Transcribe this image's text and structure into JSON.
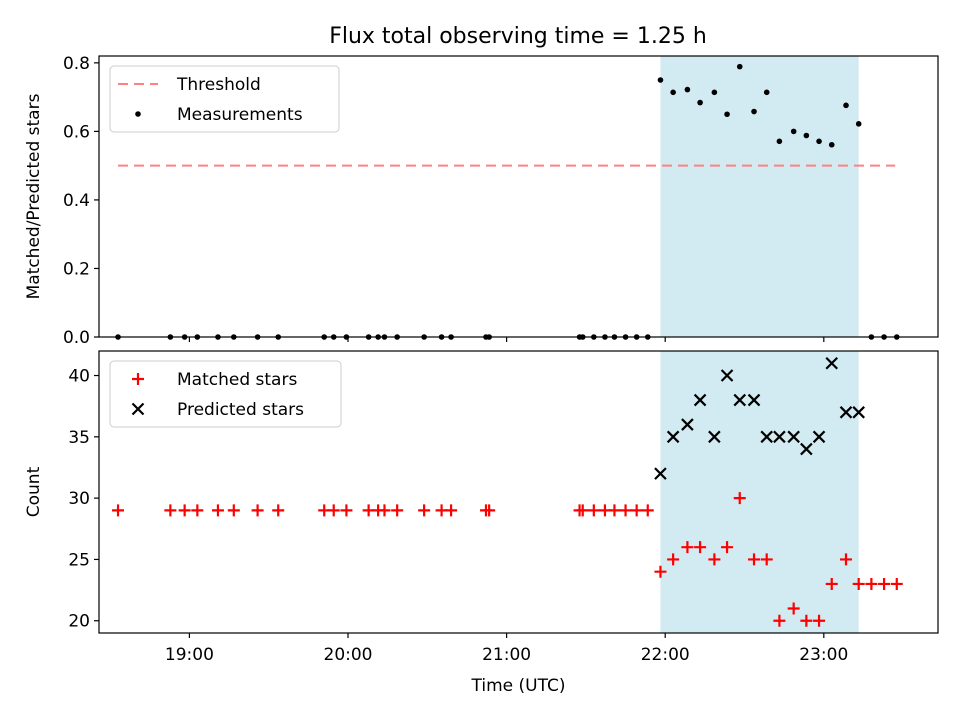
{
  "figure": {
    "title": "Flux total observing time = 1.25 h"
  },
  "chart_data": [
    {
      "type": "scatter",
      "panel": "top",
      "title": "Flux total observing time = 1.25 h",
      "xlabel": "",
      "ylabel": "Matched/Predicted stars",
      "x_units": "hours (UTC, decimal)",
      "xlim": [
        18.43,
        23.72
      ],
      "ylim": [
        0,
        0.82
      ],
      "yticks": [
        0.0,
        0.2,
        0.4,
        0.6,
        0.8
      ],
      "ytick_labels": [
        "0.0",
        "0.2",
        "0.4",
        "0.6",
        "0.8"
      ],
      "xticks": [
        19,
        20,
        21,
        22,
        23
      ],
      "xtick_labels": [
        "",
        "",
        "",
        "",
        ""
      ],
      "highlight_span": {
        "x": [
          21.97,
          23.22
        ],
        "color": "#add8e6"
      },
      "threshold": {
        "name": "Threshold",
        "y": 0.5,
        "x": [
          18.55,
          23.45
        ],
        "color": "#ff8080",
        "style": "dashed"
      },
      "series": [
        {
          "name": "Measurements",
          "marker": "dot",
          "color": "#000000",
          "x": [
            18.55,
            18.88,
            18.97,
            19.05,
            19.18,
            19.28,
            19.43,
            19.56,
            19.85,
            19.91,
            19.99,
            20.13,
            20.19,
            20.23,
            20.31,
            20.48,
            20.59,
            20.65,
            20.87,
            20.89,
            21.46,
            21.48,
            21.55,
            21.62,
            21.68,
            21.75,
            21.82,
            21.89,
            21.97,
            22.05,
            22.14,
            22.22,
            22.31,
            22.39,
            22.47,
            22.56,
            22.64,
            22.72,
            22.81,
            22.89,
            22.97,
            23.05,
            23.14,
            23.22,
            23.3,
            23.38,
            23.46
          ],
          "y": [
            0,
            0,
            0,
            0,
            0,
            0,
            0,
            0,
            0,
            0,
            0,
            0,
            0,
            0,
            0,
            0,
            0,
            0,
            0,
            0,
            0,
            0,
            0,
            0,
            0,
            0,
            0,
            0,
            0.75,
            0.714,
            0.722,
            0.684,
            0.714,
            0.65,
            0.789,
            0.658,
            0.714,
            0.571,
            0.6,
            0.588,
            0.571,
            0.561,
            0.676,
            0.622,
            0,
            0,
            0
          ]
        }
      ],
      "legend": {
        "position": "upper-left",
        "entries": [
          "Threshold",
          "Measurements"
        ]
      }
    },
    {
      "type": "scatter",
      "panel": "bottom",
      "xlabel": "Time (UTC)",
      "ylabel": "Count",
      "x_units": "hours (UTC, decimal)",
      "xlim": [
        18.43,
        23.72
      ],
      "ylim": [
        19,
        42
      ],
      "yticks": [
        20,
        25,
        30,
        35,
        40
      ],
      "ytick_labels": [
        "20",
        "25",
        "30",
        "35",
        "40"
      ],
      "xticks": [
        19,
        20,
        21,
        22,
        23
      ],
      "xtick_labels": [
        "19:00",
        "20:00",
        "21:00",
        "22:00",
        "23:00"
      ],
      "highlight_span": {
        "x": [
          21.97,
          23.22
        ],
        "color": "#add8e6"
      },
      "series": [
        {
          "name": "Matched stars",
          "marker": "plus",
          "color": "#ff0000",
          "x": [
            18.55,
            18.88,
            18.97,
            19.05,
            19.18,
            19.28,
            19.43,
            19.56,
            19.85,
            19.91,
            19.99,
            20.13,
            20.19,
            20.23,
            20.31,
            20.48,
            20.59,
            20.65,
            20.87,
            20.89,
            21.46,
            21.48,
            21.55,
            21.62,
            21.68,
            21.75,
            21.82,
            21.89,
            21.97,
            22.05,
            22.14,
            22.22,
            22.31,
            22.39,
            22.47,
            22.56,
            22.64,
            22.72,
            22.81,
            22.89,
            22.97,
            23.05,
            23.14,
            23.22,
            23.3,
            23.38,
            23.46
          ],
          "y": [
            29,
            29,
            29,
            29,
            29,
            29,
            29,
            29,
            29,
            29,
            29,
            29,
            29,
            29,
            29,
            29,
            29,
            29,
            29,
            29,
            29,
            29,
            29,
            29,
            29,
            29,
            29,
            29,
            24,
            25,
            26,
            26,
            25,
            26,
            30,
            25,
            25,
            20,
            21,
            20,
            20,
            23,
            25,
            23,
            23,
            23,
            23
          ]
        },
        {
          "name": "Predicted stars",
          "marker": "x",
          "color": "#000000",
          "x": [
            21.97,
            22.05,
            22.14,
            22.22,
            22.31,
            22.39,
            22.47,
            22.56,
            22.64,
            22.72,
            22.81,
            22.89,
            22.97,
            23.05,
            23.14,
            23.22
          ],
          "y": [
            32,
            35,
            36,
            38,
            35,
            40,
            38,
            38,
            35,
            35,
            35,
            34,
            35,
            41,
            37,
            37
          ]
        }
      ],
      "legend": {
        "position": "upper-left",
        "entries": [
          "Matched stars",
          "Predicted stars"
        ]
      }
    }
  ]
}
